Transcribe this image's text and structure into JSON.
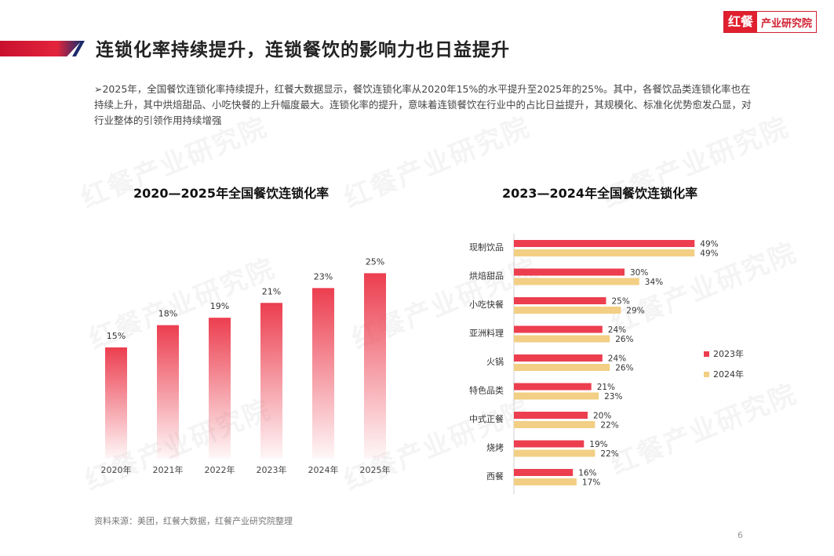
{
  "header": {
    "title": "连锁化率持续提升，连锁餐饮的影响力也日益提升",
    "logo_mark": "红餐",
    "logo_text": "产业研究院"
  },
  "intro": "➢2025年，全国餐饮连锁化率持续提升，红餐大数据显示，餐饮连锁化率从2020年15%的水平提升至2025年的25%。其中，各餐饮品类连锁化率也在持续上升，其中烘焙甜品、小吃快餐的上升幅度最大。连锁化率的提升，意味着连锁餐饮在行业中的占比日益提升，其规模化、标准化优势愈发凸显，对行业整体的引领作用持续增强",
  "watermark": "红餐产业研究院",
  "colors": {
    "red": "#ec3e4f",
    "yellow": "#f2cf84"
  },
  "chart_data": [
    {
      "type": "bar",
      "title": "2020—2025年全国餐饮连锁化率",
      "categories": [
        "2020年",
        "2021年",
        "2022年",
        "2023年",
        "2024年",
        "2025年"
      ],
      "values": [
        15,
        18,
        19,
        21,
        23,
        25
      ],
      "value_labels": [
        "15%",
        "18%",
        "19%",
        "21%",
        "23%",
        "25%"
      ],
      "ylim": [
        0,
        28
      ],
      "grid": false
    },
    {
      "type": "bar",
      "orientation": "horizontal",
      "title": "2023—2024年全国餐饮连锁化率",
      "categories": [
        "现制饮品",
        "烘焙甜品",
        "小吃快餐",
        "亚洲料理",
        "火锅",
        "特色品类",
        "中式正餐",
        "烧烤",
        "西餐"
      ],
      "series": [
        {
          "name": "2023年",
          "values": [
            49,
            30,
            25,
            24,
            24,
            21,
            20,
            19,
            16
          ],
          "labels": [
            "49%",
            "30%",
            "25%",
            "24%",
            "24%",
            "21%",
            "20%",
            "19%",
            "16%"
          ]
        },
        {
          "name": "2024年",
          "values": [
            49,
            34,
            29,
            26,
            26,
            23,
            22,
            22,
            17
          ],
          "labels": [
            "49%",
            "34%",
            "29%",
            "26%",
            "26%",
            "23%",
            "22%",
            "22%",
            "17%"
          ]
        }
      ],
      "xlim": [
        0,
        50
      ],
      "legend": "right"
    }
  ],
  "footer": {
    "source": "资料来源：美团，红餐大数据，红餐产业研究院整理",
    "page": "6"
  }
}
